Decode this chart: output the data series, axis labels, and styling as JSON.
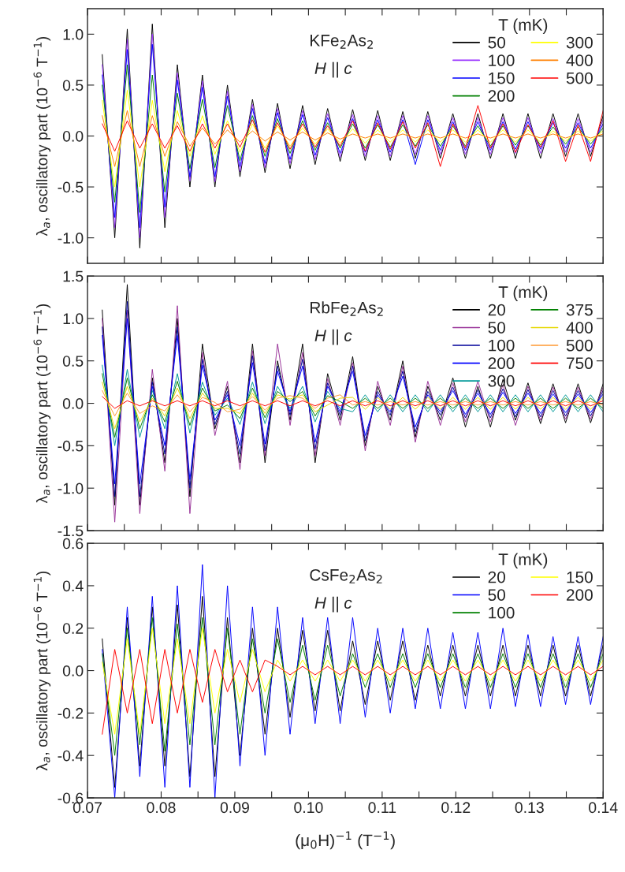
{
  "chart_data": [
    {
      "type": "line",
      "ylabel": "λ$_{a}$, oscillatory part (10$^{−6}$ T$^{−1}$)",
      "annotations": [
        "KFe$_{2}$As$_{2}$",
        "H || c"
      ],
      "legend_title": "T (mK)",
      "legend": "top right",
      "tick_labels": "y",
      "x": [
        0.072,
        0.0737,
        0.0754,
        0.0771,
        0.0788,
        0.0805,
        0.0822,
        0.0839,
        0.0856,
        0.0873,
        0.089,
        0.0907,
        0.0924,
        0.0941,
        0.0958,
        0.0975,
        0.0992,
        0.1009,
        0.1026,
        0.1043,
        0.106,
        0.1077,
        0.1094,
        0.1111,
        0.1128,
        0.1145,
        0.1162,
        0.1179,
        0.1196,
        0.1213,
        0.123,
        0.1247,
        0.1264,
        0.1281,
        0.1298,
        0.1315,
        0.1332,
        0.1349,
        0.1366,
        0.1383,
        0.14
      ],
      "xlim": [
        0.07,
        0.14
      ],
      "xticks": [
        0.07,
        0.075,
        0.08,
        0.085,
        0.09,
        0.095,
        0.1,
        0.105,
        0.11,
        0.115,
        0.12,
        0.125,
        0.13,
        0.135,
        0.14
      ],
      "ylim": [
        -1.25,
        1.25
      ],
      "yticks": [
        {
          "value": -1.0,
          "label": "-1.0"
        },
        -0.5,
        {
          "value": 0.0,
          "label": "0.0"
        },
        0.5,
        {
          "value": 1.0,
          "label": "1.0"
        }
      ],
      "series": [
        {
          "name": "50",
          "color": "#000000",
          "values": [
            0.8,
            -1.0,
            1.05,
            -1.1,
            1.1,
            -0.9,
            0.7,
            -0.5,
            0.6,
            -0.5,
            0.5,
            -0.4,
            0.36,
            -0.36,
            0.32,
            -0.32,
            0.3,
            -0.28,
            0.27,
            -0.25,
            0.26,
            -0.24,
            0.25,
            -0.24,
            0.24,
            -0.22,
            0.24,
            -0.22,
            0.22,
            -0.22,
            0.22,
            -0.22,
            0.22,
            -0.22,
            0.22,
            -0.22,
            0.22,
            -0.2,
            0.22,
            -0.2,
            0.2
          ]
        },
        {
          "name": "100",
          "color": "#9933ff",
          "values": [
            0.7,
            -0.9,
            0.95,
            -1.0,
            1.0,
            -0.8,
            0.62,
            -0.44,
            0.54,
            -0.45,
            0.44,
            -0.35,
            0.31,
            -0.31,
            0.27,
            -0.27,
            0.25,
            -0.23,
            0.22,
            -0.21,
            0.21,
            -0.2,
            0.2,
            -0.2,
            0.2,
            -0.18,
            0.2,
            -0.18,
            0.18,
            -0.18,
            0.18,
            -0.18,
            0.18,
            -0.17,
            0.18,
            -0.17,
            0.17,
            -0.16,
            0.17,
            -0.16,
            0.16
          ]
        },
        {
          "name": "150",
          "color": "#0000ff",
          "values": [
            0.6,
            -0.8,
            0.85,
            -0.9,
            0.9,
            -0.7,
            0.55,
            -0.4,
            0.48,
            -0.4,
            0.39,
            -0.3,
            0.27,
            -0.27,
            0.23,
            -0.23,
            0.21,
            -0.19,
            0.18,
            -0.17,
            0.17,
            -0.16,
            0.16,
            -0.16,
            0.16,
            -0.28,
            0.16,
            -0.14,
            0.14,
            -0.14,
            0.14,
            -0.14,
            0.14,
            -0.13,
            0.14,
            -0.13,
            0.13,
            -0.12,
            0.13,
            -0.12,
            0.12
          ]
        },
        {
          "name": "200",
          "color": "#008000",
          "values": [
            0.5,
            -0.65,
            0.7,
            -0.75,
            0.6,
            -0.55,
            0.42,
            -0.32,
            0.36,
            -0.31,
            0.3,
            -0.24,
            0.2,
            -0.2,
            0.17,
            -0.17,
            0.15,
            -0.14,
            0.13,
            -0.12,
            0.12,
            -0.12,
            0.11,
            -0.11,
            0.11,
            -0.1,
            0.11,
            -0.1,
            0.1,
            -0.1,
            0.1,
            -0.1,
            0.1,
            -0.09,
            0.1,
            -0.09,
            0.09,
            -0.08,
            0.09,
            -0.08,
            0.08
          ]
        },
        {
          "name": "300",
          "color": "#ffff00",
          "values": [
            0.35,
            -0.5,
            0.45,
            -0.5,
            0.35,
            -0.35,
            0.25,
            -0.2,
            0.2,
            -0.18,
            0.15,
            -0.16,
            0.12,
            -0.12,
            0.1,
            -0.1,
            0.08,
            -0.08,
            0.07,
            -0.07,
            0.07,
            -0.07,
            0.06,
            -0.06,
            0.06,
            -0.06,
            0.06,
            -0.06,
            0.06,
            -0.06,
            0.06,
            -0.06,
            0.06,
            -0.06,
            0.06,
            -0.06,
            0.05,
            -0.05,
            0.05,
            -0.05,
            0.05
          ]
        },
        {
          "name": "400",
          "color": "#ff8000",
          "values": [
            0.2,
            -0.3,
            0.25,
            -0.3,
            0.2,
            -0.2,
            0.14,
            -0.1,
            0.08,
            -0.08,
            0.06,
            -0.06,
            0.05,
            -0.05,
            0.04,
            -0.04,
            0.04,
            -0.04,
            0.03,
            -0.03,
            0.02,
            -0.02,
            0.02,
            -0.02,
            0.02,
            -0.02,
            0.02,
            -0.02,
            0.02,
            -0.02,
            0.02,
            -0.02,
            0.02,
            -0.02,
            0.02,
            -0.02,
            0.02,
            -0.02,
            0.02,
            -0.02,
            0.02
          ]
        },
        {
          "name": "500",
          "color": "#ff0000",
          "values": [
            0.12,
            -0.15,
            0.15,
            -0.12,
            0.12,
            -0.12,
            0.1,
            -0.15,
            0.12,
            -0.12,
            0.12,
            -0.11,
            0.16,
            -0.16,
            0.13,
            -0.13,
            0.12,
            -0.11,
            0.1,
            -0.1,
            0.15,
            -0.15,
            0.13,
            -0.13,
            0.14,
            -0.12,
            0.13,
            -0.3,
            0.12,
            -0.12,
            0.3,
            -0.12,
            0.12,
            -0.16,
            0.11,
            -0.11,
            0.15,
            -0.25,
            0.11,
            -0.25,
            0.25
          ]
        }
      ]
    },
    {
      "type": "line",
      "ylabel": "λ$_{a}$, oscillatory part (10$^{−6}$ T$^{−1}$)",
      "annotations": [
        "RbFe$_{2}$As$_{2}$",
        "H || c"
      ],
      "legend_title": "T (mK)",
      "legend": "top right",
      "tick_labels": "y",
      "x": [
        0.072,
        0.0737,
        0.0754,
        0.0771,
        0.0788,
        0.0805,
        0.0822,
        0.0839,
        0.0856,
        0.0873,
        0.089,
        0.0907,
        0.0924,
        0.0941,
        0.0958,
        0.0975,
        0.0992,
        0.1009,
        0.1026,
        0.1043,
        0.106,
        0.1077,
        0.1094,
        0.1111,
        0.1128,
        0.1145,
        0.1162,
        0.1179,
        0.1196,
        0.1213,
        0.123,
        0.1247,
        0.1264,
        0.1281,
        0.1298,
        0.1315,
        0.1332,
        0.1349,
        0.1366,
        0.1383,
        0.14
      ],
      "xlim": [
        0.07,
        0.14
      ],
      "xticks": [
        0.07,
        0.075,
        0.08,
        0.085,
        0.09,
        0.095,
        0.1,
        0.105,
        0.11,
        0.115,
        0.12,
        0.125,
        0.13,
        0.135,
        0.14
      ],
      "ylim": [
        -1.5,
        1.5
      ],
      "yticks": [
        -1.5,
        {
          "value": -1.0,
          "label": "-1.0"
        },
        -0.5,
        {
          "value": 0.0,
          "label": "0.0"
        },
        0.5,
        {
          "value": 1.0,
          "label": "1.0"
        },
        1.5
      ],
      "series": [
        {
          "name": "20",
          "color": "#000000",
          "values": [
            1.1,
            -1.2,
            1.4,
            -1.2,
            0.3,
            -0.7,
            1.0,
            -1.1,
            0.7,
            -0.3,
            0.2,
            -0.7,
            0.7,
            -0.7,
            0.5,
            -0.2,
            0.7,
            -0.7,
            0.35,
            -0.2,
            0.55,
            -0.5,
            0.2,
            -0.2,
            0.5,
            -0.4,
            0.2,
            -0.2,
            0.3,
            -0.28,
            0.2,
            -0.28,
            0.28,
            -0.2,
            0.24,
            -0.24,
            0.23,
            -0.23,
            0.23,
            -0.23,
            0.23
          ]
        },
        {
          "name": "50",
          "color": "#993399",
          "values": [
            1.0,
            -1.4,
            1.1,
            -1.3,
            0.4,
            -0.8,
            1.15,
            -1.3,
            0.6,
            -0.38,
            0.26,
            -0.78,
            0.62,
            -0.62,
            0.7,
            -0.26,
            0.6,
            -0.62,
            0.29,
            -0.26,
            0.48,
            -0.56,
            0.26,
            -0.26,
            0.44,
            -0.46,
            0.26,
            -0.26,
            0.24,
            -0.22,
            0.26,
            -0.22,
            0.22,
            -0.26,
            0.2,
            -0.2,
            0.19,
            -0.19,
            0.19,
            -0.19,
            0.19
          ]
        },
        {
          "name": "100",
          "color": "#000099",
          "values": [
            0.9,
            -1.1,
            1.2,
            -1.1,
            0.25,
            -0.6,
            0.9,
            -1.0,
            0.52,
            -0.25,
            0.14,
            -0.6,
            0.56,
            -0.56,
            0.44,
            -0.14,
            0.52,
            -0.54,
            0.24,
            -0.14,
            0.44,
            -0.44,
            0.14,
            -0.14,
            0.38,
            -0.34,
            0.14,
            -0.14,
            0.19,
            -0.17,
            0.16,
            -0.17,
            0.17,
            -0.16,
            0.16,
            -0.16,
            0.15,
            -0.15,
            0.15,
            -0.15,
            0.15
          ]
        },
        {
          "name": "200",
          "color": "#0000ff",
          "values": [
            0.8,
            -0.95,
            1.0,
            -0.95,
            0.2,
            -0.5,
            0.8,
            -0.9,
            0.45,
            -0.2,
            0.1,
            -0.5,
            0.48,
            -0.48,
            0.38,
            -0.1,
            0.44,
            -0.46,
            0.2,
            -0.1,
            0.38,
            -0.38,
            0.1,
            -0.1,
            0.32,
            -0.28,
            0.1,
            -0.1,
            0.15,
            -0.13,
            0.12,
            -0.13,
            0.13,
            -0.12,
            0.12,
            -0.12,
            0.11,
            -0.11,
            0.11,
            -0.11,
            0.11
          ]
        },
        {
          "name": "300",
          "color": "#009999",
          "values": [
            0.45,
            -0.5,
            0.4,
            -0.4,
            0.15,
            -0.3,
            0.35,
            -0.35,
            0.25,
            -0.14,
            0.06,
            -0.25,
            0.25,
            -0.24,
            0.2,
            -0.06,
            0.2,
            -0.22,
            0.14,
            -0.06,
            -0.1,
            0.1,
            -0.1,
            0.1,
            -0.1,
            0.1,
            -0.1,
            0.1,
            -0.1,
            0.1,
            -0.1,
            0.1,
            -0.1,
            0.1,
            -0.1,
            0.1,
            -0.1,
            0.1,
            -0.1,
            0.1,
            -0.1
          ]
        },
        {
          "name": "375",
          "color": "#008000",
          "values": [
            0.35,
            -0.4,
            0.3,
            -0.3,
            0.1,
            -0.22,
            0.26,
            -0.26,
            0.18,
            -0.09,
            -0.02,
            -0.18,
            0.18,
            -0.17,
            0.14,
            0.02,
            0.14,
            -0.15,
            0.09,
            0.02,
            -0.06,
            0.06,
            -0.06,
            0.06,
            -0.06,
            0.06,
            -0.06,
            0.06,
            -0.06,
            0.06,
            -0.06,
            0.06,
            -0.06,
            0.06,
            -0.06,
            0.06,
            -0.06,
            0.06,
            -0.06,
            0.06,
            -0.06
          ]
        },
        {
          "name": "400",
          "color": "#e6d800",
          "values": [
            0.25,
            -0.3,
            0.2,
            -0.22,
            0.06,
            -0.15,
            0.18,
            -0.18,
            0.12,
            -0.06,
            -0.06,
            -0.12,
            0.12,
            -0.12,
            0.1,
            0.05,
            0.1,
            -0.1,
            -0.02,
            0.06,
            0.07,
            -0.07,
            0.07,
            -0.07,
            0.07,
            -0.07,
            0.07,
            -0.07,
            0.07,
            -0.07,
            0.07,
            -0.07,
            0.07,
            -0.07,
            0.07,
            -0.07,
            0.07,
            -0.07,
            0.07,
            -0.07,
            0.07
          ]
        },
        {
          "name": "500",
          "color": "#ff9933",
          "values": [
            0.15,
            -0.15,
            0.12,
            -0.12,
            -0.03,
            -0.09,
            0.1,
            -0.1,
            0.07,
            0.01,
            -0.1,
            -0.07,
            0.08,
            -0.08,
            0.06,
            0.09,
            0.06,
            -0.06,
            0.06,
            0.1,
            -0.02,
            0.02,
            -0.02,
            0.02,
            -0.02,
            0.02,
            -0.02,
            0.02,
            -0.02,
            0.02,
            -0.02,
            0.02,
            -0.02,
            0.02,
            -0.02,
            0.02,
            -0.02,
            0.02,
            -0.02,
            0.02,
            -0.02
          ]
        },
        {
          "name": "750",
          "color": "#ff0000",
          "values": [
            0.08,
            -0.06,
            0.03,
            -0.03,
            0.03,
            -0.03,
            0.03,
            -0.03,
            0.03,
            -0.03,
            0.03,
            -0.03,
            0.03,
            -0.03,
            0.03,
            -0.03,
            0.03,
            -0.03,
            0.03,
            -0.03,
            0.03,
            -0.03,
            0.03,
            -0.03,
            0.03,
            -0.03,
            0.03,
            -0.03,
            0.03,
            -0.03,
            0.03,
            -0.03,
            0.03,
            -0.03,
            0.03,
            -0.03,
            0.03,
            -0.03,
            0.03,
            -0.03,
            0.03
          ]
        }
      ]
    },
    {
      "type": "line",
      "ylabel": "λ$_{a}$, oscillatory part (10$^{−6}$ T$^{−1}$)",
      "xlabel": "(μ$_{0}$H)$^{−1}$ (T$^{−1}$)",
      "annotations": [
        "CsFe$_{2}$As$_{2}$",
        "H || c"
      ],
      "legend_title": "T (mK)",
      "legend": "top right",
      "x": [
        0.072,
        0.0737,
        0.0754,
        0.0771,
        0.0788,
        0.0805,
        0.0822,
        0.0839,
        0.0856,
        0.0873,
        0.089,
        0.0907,
        0.0924,
        0.0941,
        0.0958,
        0.0975,
        0.0992,
        0.1009,
        0.1026,
        0.1043,
        0.106,
        0.1077,
        0.1094,
        0.1111,
        0.1128,
        0.1145,
        0.1162,
        0.1179,
        0.1196,
        0.1213,
        0.123,
        0.1247,
        0.1264,
        0.1281,
        0.1298,
        0.1315,
        0.1332,
        0.1349,
        0.1366,
        0.1383,
        0.14
      ],
      "xlim": [
        0.07,
        0.14
      ],
      "xticks": [
        0.07,
        {
          "value": 0.075,
          "label": null
        },
        0.08,
        {
          "value": 0.085,
          "label": null
        },
        0.09,
        {
          "value": 0.095,
          "label": null
        },
        {
          "value": 0.1,
          "label": "0.10"
        },
        {
          "value": 0.105,
          "label": null
        },
        0.11,
        {
          "value": 0.115,
          "label": null
        },
        0.12,
        {
          "value": 0.125,
          "label": null
        },
        0.13,
        {
          "value": 0.135,
          "label": null
        },
        0.14
      ],
      "ylim": [
        -0.6,
        0.6
      ],
      "yticks": [
        -0.6,
        -0.4,
        -0.2,
        {
          "value": 0.0,
          "label": "0.0"
        },
        0.2,
        0.4,
        0.6
      ],
      "series": [
        {
          "name": "20",
          "color": "#000000",
          "values": [
            0.15,
            -0.55,
            0.25,
            -0.45,
            0.3,
            -0.45,
            0.31,
            -0.5,
            0.35,
            -0.5,
            0.25,
            -0.4,
            0.2,
            -0.3,
            0.2,
            -0.22,
            0.19,
            -0.19,
            0.19,
            -0.19,
            0.14,
            -0.16,
            0.14,
            -0.14,
            0.14,
            -0.14,
            0.12,
            -0.12,
            0.12,
            -0.12,
            0.12,
            -0.12,
            0.12,
            -0.12,
            0.12,
            -0.12,
            0.12,
            -0.12,
            0.12,
            -0.12,
            0.12
          ]
        },
        {
          "name": "50",
          "color": "#0000ff",
          "values": [
            0.1,
            -0.6,
            0.3,
            -0.5,
            0.35,
            -0.55,
            0.4,
            -0.55,
            0.5,
            -0.6,
            0.4,
            -0.45,
            0.3,
            -0.4,
            0.3,
            -0.3,
            0.25,
            -0.25,
            0.25,
            -0.25,
            0.25,
            -0.22,
            0.2,
            -0.2,
            0.2,
            -0.18,
            0.2,
            -0.18,
            0.18,
            -0.18,
            0.18,
            -0.18,
            0.2,
            -0.17,
            0.17,
            -0.17,
            0.16,
            -0.16,
            0.16,
            -0.16,
            0.16
          ]
        },
        {
          "name": "100",
          "color": "#008000",
          "values": [
            0.08,
            -0.4,
            0.2,
            -0.35,
            0.25,
            -0.38,
            0.22,
            -0.35,
            0.25,
            -0.35,
            0.2,
            -0.3,
            0.15,
            -0.2,
            0.15,
            -0.15,
            0.12,
            -0.14,
            0.12,
            -0.12,
            0.08,
            -0.08,
            0.08,
            -0.08,
            0.08,
            -0.08,
            0.08,
            -0.08,
            0.08,
            -0.08,
            0.08,
            -0.08,
            0.08,
            -0.08,
            0.08,
            -0.08,
            0.08,
            -0.08,
            0.08,
            -0.08,
            0.08
          ]
        },
        {
          "name": "150",
          "color": "#ffff00",
          "values": [
            0.04,
            -0.3,
            0.15,
            -0.3,
            0.2,
            -0.25,
            0.15,
            -0.25,
            0.2,
            -0.2,
            0.1,
            -0.15,
            0.1,
            -0.1,
            0.05,
            -0.05,
            0.05,
            -0.05,
            0.05,
            -0.05,
            0.05,
            -0.05,
            0.05,
            -0.05,
            0.05,
            -0.05,
            0.05,
            -0.05,
            0.05,
            -0.05,
            0.05,
            -0.05,
            0.05,
            -0.05,
            0.05,
            -0.05,
            0.05,
            -0.05,
            0.05,
            -0.05,
            0.05
          ]
        },
        {
          "name": "200",
          "color": "#ff0000",
          "values": [
            -0.3,
            0.1,
            -0.2,
            0.1,
            -0.25,
            0.1,
            -0.2,
            0.1,
            -0.15,
            0.1,
            -0.1,
            0.05,
            -0.1,
            0.05,
            0.02,
            -0.02,
            0.02,
            -0.02,
            0.02,
            -0.02,
            0.02,
            -0.02,
            0.02,
            -0.02,
            0.02,
            -0.02,
            0.02,
            -0.02,
            0.02,
            -0.02,
            0.02,
            -0.02,
            0.02,
            -0.02,
            0.02,
            -0.02,
            0.02,
            -0.02,
            0.02,
            -0.02,
            0.02
          ]
        }
      ]
    }
  ]
}
